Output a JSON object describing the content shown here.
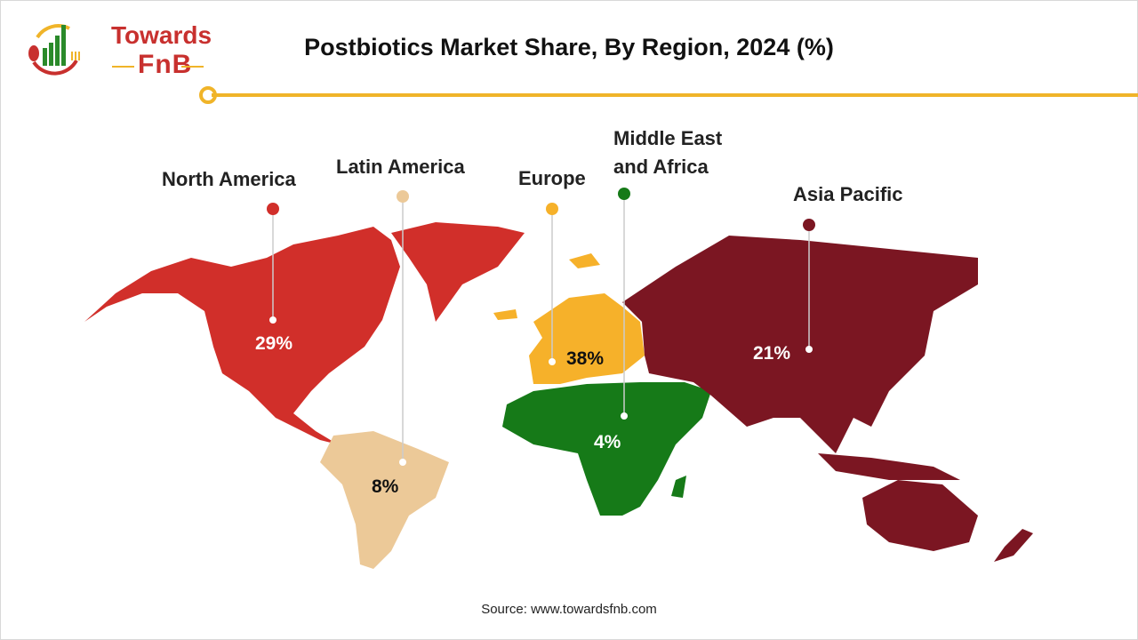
{
  "title": "Postbiotics Market Share, By Region, 2024 (%)",
  "logo": {
    "line1": "Towards",
    "line2": "FnB"
  },
  "source": "Source: www.towardsfnb.com",
  "chart_data": {
    "type": "map",
    "title": "Postbiotics Market Share, By Region, 2024 (%)",
    "unit": "%",
    "regions": [
      {
        "name": "North America",
        "value": 29,
        "label": "29%",
        "color": "#d12f2a"
      },
      {
        "name": "Latin America",
        "value": 8,
        "label": "8%",
        "color": "#ecc998"
      },
      {
        "name": "Europe",
        "value": 38,
        "label": "38%",
        "color": "#f6b12a"
      },
      {
        "name": "Middle East and Africa",
        "value": 4,
        "label": "4%",
        "color": "#167a18"
      },
      {
        "name": "Asia Pacific",
        "value": 21,
        "label": "21%",
        "color": "#7b1622"
      }
    ]
  }
}
